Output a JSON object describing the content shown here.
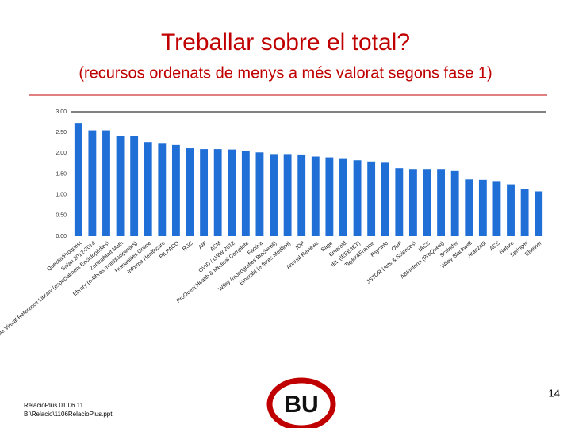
{
  "chart_data": {
    "type": "bar",
    "title": "Treballar sobre el total?",
    "subtitle": "(recursos ordenats de menys a més valorat segons fase 1)",
    "categories": [
      "Questia/Proquest",
      "Safari 2012-2014",
      "Gale Virtual Reference Library (especialment Enciclopèdies)",
      "Zentralblatt Math",
      "Ebrary (e-llibres multidisciplinars)",
      "Humanities Online",
      "Informa Healthcare",
      "PILPACO",
      "RSC",
      "AIP",
      "ASM",
      "OVID / LWW 2012",
      "ProQuest Health & Medical Complete",
      "Factiva",
      "Wiley (monografies Blackwell)",
      "Emerald (e-fitxes Medline)",
      "IOP",
      "Annual Reviews",
      "Sage",
      "Emerald",
      "IEL (IEEE/IET)",
      "Taylor&Francis",
      "Psycinfo",
      "OUP",
      "JSTOR (Arts & Sciences)",
      "IACS",
      "ABI/Inform (ProQuest)",
      "Scifinder",
      "Wiley-Blackwell",
      "Aranzadi",
      "ACS",
      "Nature",
      "Springer",
      "Elsevier"
    ],
    "values": [
      2.73,
      2.55,
      2.55,
      2.42,
      2.41,
      2.27,
      2.23,
      2.2,
      2.12,
      2.1,
      2.1,
      2.09,
      2.06,
      2.02,
      1.98,
      1.98,
      1.97,
      1.92,
      1.9,
      1.88,
      1.83,
      1.8,
      1.77,
      1.64,
      1.62,
      1.62,
      1.62,
      1.57,
      1.37,
      1.36,
      1.33,
      1.25,
      1.13,
      1.08
    ],
    "color": "#1f6fd6",
    "ylim": [
      0,
      3
    ],
    "yticks": [
      {
        "value": 0,
        "label": "0.00"
      },
      {
        "value": 0.5,
        "label": "0.50"
      },
      {
        "value": 1,
        "label": "1.00"
      },
      {
        "value": 1.5,
        "label": "1.50"
      },
      {
        "value": 2,
        "label": "2.00"
      },
      {
        "value": 2.5,
        "label": "2.50"
      },
      {
        "value": 3,
        "label": "3.00"
      }
    ]
  },
  "footer": {
    "file_line1": "RelacioPlus 01.06.11",
    "file_line2": "B:\\Relacio\\1106RelacioPlus.ppt",
    "page_number": "14",
    "logo": "BU"
  }
}
